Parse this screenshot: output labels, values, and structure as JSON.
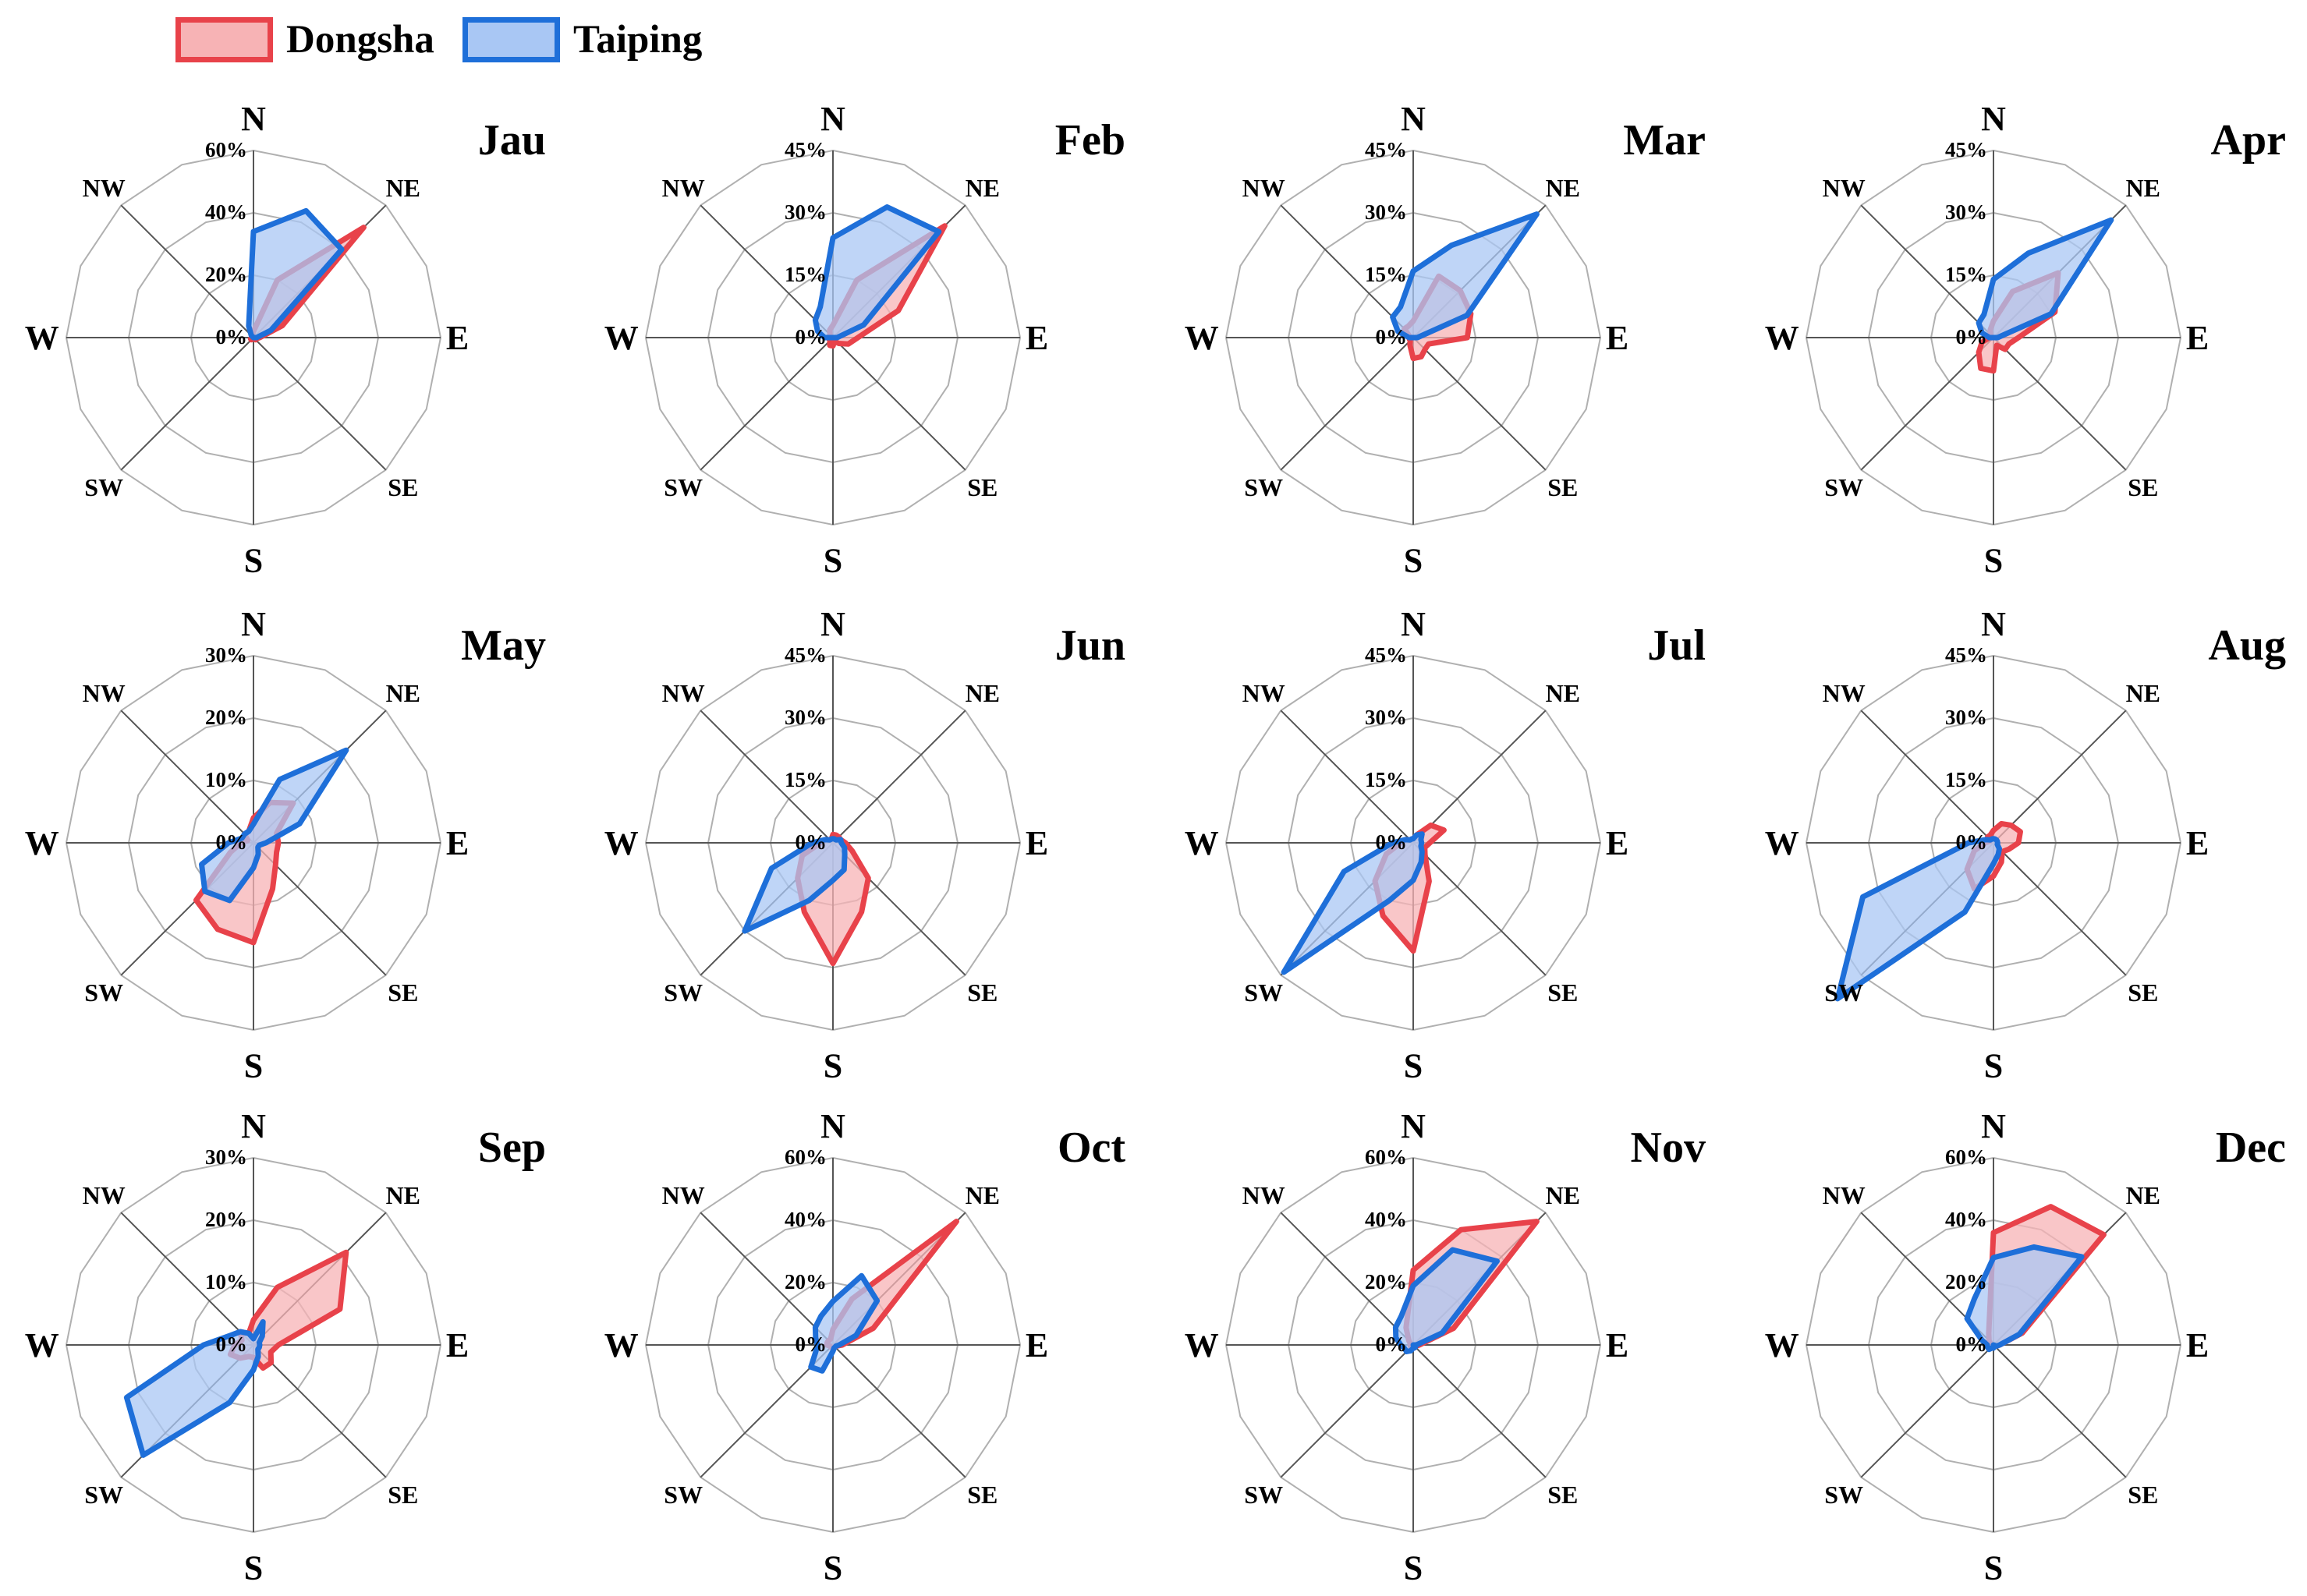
{
  "legend": {
    "dongsha": "Dongsha",
    "taiping": "Taiping"
  },
  "colors": {
    "dongsha_stroke": "#e8424a",
    "dongsha_fill": "#f7b3b5",
    "taiping_stroke": "#1e6fd9",
    "taiping_fill": "#a9c7f4",
    "grid": "#b0b0b0",
    "axis": "#555555"
  },
  "directions": {
    "N": "N",
    "NE": "NE",
    "E": "E",
    "SE": "SE",
    "S": "S",
    "SW": "SW",
    "W": "W",
    "NW": "NW"
  },
  "chart_data": [
    {
      "type": "radar",
      "title": "Jau",
      "ticks": [
        "0%",
        "20%",
        "40%",
        "60%"
      ],
      "rmax": 60,
      "series": [
        {
          "name": "Dongsha",
          "values": [
            2,
            20,
            50,
            10,
            2,
            1,
            1,
            0,
            0,
            0,
            1,
            1,
            0,
            0,
            0,
            1
          ]
        },
        {
          "name": "Taiping",
          "values": [
            34,
            44,
            40,
            6,
            1,
            0,
            0,
            0,
            0,
            0,
            0,
            0,
            0,
            0,
            1,
            4
          ]
        }
      ]
    },
    {
      "type": "radar",
      "title": "Feb",
      "ticks": [
        "0%",
        "15%",
        "30%",
        "45%"
      ],
      "rmax": 45,
      "series": [
        {
          "name": "Dongsha",
          "values": [
            3,
            15,
            38,
            17,
            6,
            4,
            2,
            1,
            2,
            2,
            1,
            1,
            1,
            1,
            1,
            2
          ]
        },
        {
          "name": "Taiping",
          "values": [
            24,
            34,
            36,
            8,
            1,
            0,
            0,
            0,
            0,
            0,
            0,
            0,
            2,
            4,
            6,
            8
          ]
        }
      ]
    },
    {
      "type": "radar",
      "title": "Mar",
      "ticks": [
        "0%",
        "15%",
        "30%",
        "45%"
      ],
      "rmax": 45,
      "series": [
        {
          "name": "Dongsha",
          "values": [
            4,
            16,
            16,
            15,
            13,
            4,
            4,
            5,
            5,
            2,
            1,
            1,
            1,
            1,
            3,
            3
          ]
        },
        {
          "name": "Taiping",
          "values": [
            16,
            24,
            42,
            14,
            1,
            0,
            0,
            0,
            0,
            0,
            0,
            0,
            1,
            4,
            7,
            8
          ]
        }
      ]
    },
    {
      "type": "radar",
      "title": "Apr",
      "ticks": [
        "0%",
        "15%",
        "30%",
        "45%"
      ],
      "rmax": 45,
      "series": [
        {
          "name": "Dongsha",
          "values": [
            4,
            12,
            22,
            16,
            6,
            4,
            4,
            2,
            8,
            8,
            5,
            3,
            1,
            1,
            1,
            2
          ]
        },
        {
          "name": "Taiping",
          "values": [
            14,
            22,
            40,
            15,
            1,
            0,
            0,
            0,
            0,
            0,
            0,
            0,
            1,
            3,
            5,
            6
          ]
        }
      ]
    },
    {
      "type": "radar",
      "title": "May",
      "ticks": [
        "0%",
        "10%",
        "20%",
        "30%"
      ],
      "rmax": 30,
      "series": [
        {
          "name": "Dongsha",
          "values": [
            4,
            7,
            9,
            4,
            4,
            4,
            5,
            8,
            16,
            15,
            13,
            4,
            2,
            1,
            2,
            2
          ]
        },
        {
          "name": "Taiping",
          "values": [
            3,
            11,
            21,
            8,
            2,
            1,
            1,
            2,
            4,
            10,
            11,
            9,
            4,
            2,
            2,
            2
          ]
        }
      ]
    },
    {
      "type": "radar",
      "title": "Jun",
      "ticks": [
        "0%",
        "15%",
        "30%",
        "45%"
      ],
      "rmax": 45,
      "series": [
        {
          "name": "Dongsha",
          "values": [
            2,
            2,
            2,
            2,
            3,
            5,
            12,
            18,
            29,
            18,
            12,
            8,
            3,
            2,
            1,
            1
          ]
        },
        {
          "name": "Taiping",
          "values": [
            1,
            1,
            1,
            2,
            2,
            3,
            4,
            7,
            9,
            15,
            30,
            16,
            5,
            2,
            1,
            1
          ]
        }
      ]
    },
    {
      "type": "radar",
      "title": "Jul",
      "ticks": [
        "0%",
        "15%",
        "30%",
        "45%"
      ],
      "rmax": 45,
      "series": [
        {
          "name": "Dongsha",
          "values": [
            1,
            2,
            6,
            8,
            4,
            3,
            4,
            10,
            26,
            19,
            13,
            7,
            3,
            2,
            1,
            1
          ]
        },
        {
          "name": "Taiping",
          "values": [
            1,
            2,
            3,
            2,
            2,
            2,
            3,
            5,
            9,
            15,
            44,
            18,
            5,
            2,
            1,
            1
          ]
        }
      ]
    },
    {
      "type": "radar",
      "title": "Aug",
      "ticks": [
        "0%",
        "15%",
        "30%",
        "45%"
      ],
      "rmax": 45,
      "series": [
        {
          "name": "Dongsha",
          "values": [
            3,
            5,
            6,
            7,
            6,
            4,
            3,
            5,
            8,
            12,
            9,
            5,
            2,
            1,
            2,
            2
          ]
        },
        {
          "name": "Taiping",
          "values": [
            1,
            1,
            1,
            1,
            1,
            1,
            2,
            3,
            5,
            18,
            53,
            34,
            6,
            2,
            1,
            1
          ]
        }
      ]
    },
    {
      "type": "radar",
      "title": "Sep",
      "ticks": [
        "0%",
        "10%",
        "20%",
        "30%"
      ],
      "rmax": 30,
      "series": [
        {
          "name": "Dongsha",
          "values": [
            4,
            10,
            21,
            15,
            4,
            3,
            4,
            4,
            2,
            2,
            3,
            4,
            3,
            2,
            3,
            2
          ]
        },
        {
          "name": "Taiping",
          "values": [
            1,
            4,
            2,
            1,
            1,
            1,
            1,
            2,
            4,
            10,
            25,
            22,
            8,
            4,
            3,
            2
          ]
        }
      ]
    },
    {
      "type": "radar",
      "title": "Oct",
      "ticks": [
        "0%",
        "20%",
        "40%",
        "60%"
      ],
      "rmax": 60,
      "series": [
        {
          "name": "Dongsha",
          "values": [
            5,
            16,
            56,
            14,
            3,
            1,
            1,
            1,
            1,
            1,
            1,
            1,
            2,
            2,
            2,
            2
          ]
        },
        {
          "name": "Taiping",
          "values": [
            14,
            24,
            20,
            8,
            2,
            1,
            1,
            1,
            2,
            9,
            10,
            6,
            5,
            6,
            8,
            10
          ]
        }
      ]
    },
    {
      "type": "radar",
      "title": "Nov",
      "ticks": [
        "0%",
        "20%",
        "40%",
        "60%"
      ],
      "rmax": 60,
      "series": [
        {
          "name": "Dongsha",
          "values": [
            24,
            40,
            56,
            14,
            2,
            1,
            1,
            1,
            0,
            0,
            1,
            1,
            1,
            1,
            2,
            6
          ]
        },
        {
          "name": "Taiping",
          "values": [
            19,
            33,
            38,
            10,
            1,
            0,
            1,
            1,
            1,
            2,
            3,
            3,
            4,
            6,
            8,
            10
          ]
        }
      ]
    },
    {
      "type": "radar",
      "title": "Dec",
      "ticks": [
        "0%",
        "20%",
        "40%",
        "60%"
      ],
      "rmax": 60,
      "series": [
        {
          "name": "Dongsha",
          "values": [
            36,
            48,
            50,
            10,
            2,
            1,
            0,
            0,
            0,
            0,
            0,
            0,
            1,
            1,
            2,
            4
          ]
        },
        {
          "name": "Taiping",
          "values": [
            28,
            34,
            40,
            9,
            2,
            1,
            0,
            0,
            1,
            1,
            2,
            2,
            2,
            4,
            12,
            16
          ]
        }
      ]
    }
  ]
}
